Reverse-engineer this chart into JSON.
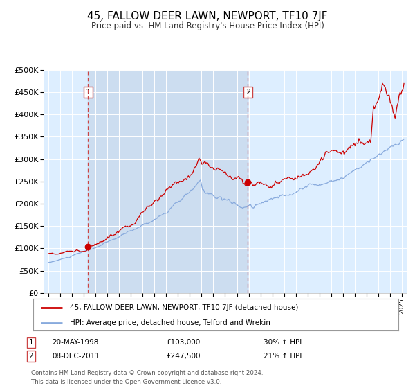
{
  "title": "45, FALLOW DEER LAWN, NEWPORT, TF10 7JF",
  "subtitle": "Price paid vs. HM Land Registry's House Price Index (HPI)",
  "title_fontsize": 11,
  "subtitle_fontsize": 9,
  "background_color": "#ffffff",
  "plot_bg_color": "#ddeeff",
  "grid_color": "#ffffff",
  "red_line_color": "#cc0000",
  "blue_line_color": "#88aadd",
  "purchase1_date_num": 1998.38,
  "purchase1_price": 103000,
  "purchase1_label": "1",
  "purchase1_text": "20-MAY-1998",
  "purchase1_amount": "£103,000",
  "purchase1_hpi": "30% ↑ HPI",
  "purchase2_date_num": 2011.93,
  "purchase2_price": 247500,
  "purchase2_label": "2",
  "purchase2_text": "08-DEC-2011",
  "purchase2_amount": "£247,500",
  "purchase2_hpi": "21% ↑ HPI",
  "legend_line1": "45, FALLOW DEER LAWN, NEWPORT, TF10 7JF (detached house)",
  "legend_line2": "HPI: Average price, detached house, Telford and Wrekin",
  "footer": "Contains HM Land Registry data © Crown copyright and database right 2024.\nThis data is licensed under the Open Government Licence v3.0.",
  "ylim": [
    0,
    500000
  ],
  "xlim_start": 1994.6,
  "xlim_end": 2025.4
}
